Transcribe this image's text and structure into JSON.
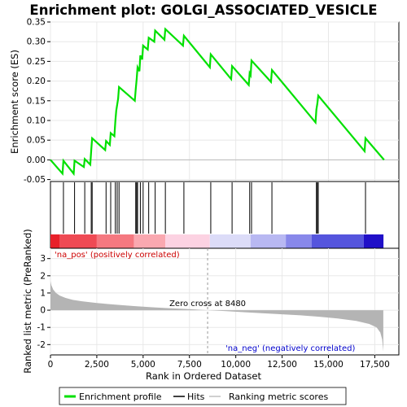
{
  "chart_data": {
    "type": "line",
    "title": "Enrichment plot: GOLGI_ASSOCIATED_VESICLE",
    "xlabel": "Rank in Ordered Dataset",
    "ylabel_top": "Enrichment score (ES)",
    "ylabel_bottom": "Ranked list metric (PreRanked)",
    "xlim": [
      0,
      18800
    ],
    "x_ticks": [
      0,
      2500,
      5000,
      7500,
      10000,
      12500,
      15000,
      17500
    ],
    "x_tick_labels": [
      "0",
      "2,500",
      "5,000",
      "7,500",
      "10,000",
      "12,500",
      "15,000",
      "17,500"
    ],
    "es_ylim": [
      -0.055,
      0.35
    ],
    "es_ticks": [
      -0.05,
      0.0,
      0.05,
      0.1,
      0.15,
      0.2,
      0.25,
      0.3,
      0.35
    ],
    "es_tick_labels": [
      "-0.05",
      "0.00",
      "0.05",
      "0.10",
      "0.15",
      "0.20",
      "0.25",
      "0.30",
      "0.35"
    ],
    "metric_ylim": [
      -2.6,
      3.6
    ],
    "metric_ticks": [
      -2,
      -1,
      0,
      1,
      2,
      3
    ],
    "metric_tick_labels": [
      "-2",
      "-1",
      "0",
      "1",
      "2",
      "3"
    ],
    "hits": [
      0,
      700,
      1300,
      1850,
      2200,
      2250,
      3000,
      3250,
      3500,
      3600,
      3700,
      4600,
      4650,
      4700,
      4850,
      5000,
      5300,
      5650,
      6200,
      7200,
      8650,
      9800,
      10750,
      10850,
      11950,
      14350,
      14400,
      14450,
      17000
    ],
    "es_curve": [
      [
        0,
        0.0
      ],
      [
        650,
        -0.035
      ],
      [
        700,
        -0.002
      ],
      [
        1250,
        -0.035
      ],
      [
        1300,
        -0.002
      ],
      [
        1800,
        -0.018
      ],
      [
        1850,
        0.002
      ],
      [
        2150,
        -0.012
      ],
      [
        2200,
        0.025
      ],
      [
        2250,
        0.055
      ],
      [
        2950,
        0.025
      ],
      [
        3000,
        0.048
      ],
      [
        3200,
        0.038
      ],
      [
        3250,
        0.068
      ],
      [
        3450,
        0.06
      ],
      [
        3500,
        0.098
      ],
      [
        3550,
        0.125
      ],
      [
        3650,
        0.155
      ],
      [
        3700,
        0.185
      ],
      [
        4550,
        0.15
      ],
      [
        4600,
        0.178
      ],
      [
        4650,
        0.205
      ],
      [
        4700,
        0.235
      ],
      [
        4800,
        0.225
      ],
      [
        4850,
        0.265
      ],
      [
        4950,
        0.255
      ],
      [
        5000,
        0.29
      ],
      [
        5250,
        0.28
      ],
      [
        5300,
        0.31
      ],
      [
        5600,
        0.3
      ],
      [
        5650,
        0.328
      ],
      [
        6150,
        0.305
      ],
      [
        6200,
        0.332
      ],
      [
        7150,
        0.29
      ],
      [
        7200,
        0.315
      ],
      [
        8600,
        0.235
      ],
      [
        8650,
        0.268
      ],
      [
        9750,
        0.205
      ],
      [
        9800,
        0.238
      ],
      [
        10700,
        0.19
      ],
      [
        10750,
        0.22
      ],
      [
        10800,
        0.215
      ],
      [
        10850,
        0.252
      ],
      [
        11900,
        0.198
      ],
      [
        11950,
        0.228
      ],
      [
        14300,
        0.095
      ],
      [
        14350,
        0.128
      ],
      [
        14400,
        0.142
      ],
      [
        14450,
        0.163
      ],
      [
        16950,
        0.022
      ],
      [
        17000,
        0.055
      ],
      [
        18000,
        0.0
      ]
    ],
    "metric_profile": [
      [
        0,
        1.7
      ],
      [
        50,
        1.45
      ],
      [
        150,
        1.2
      ],
      [
        300,
        1.0
      ],
      [
        500,
        0.85
      ],
      [
        800,
        0.72
      ],
      [
        1200,
        0.6
      ],
      [
        1700,
        0.52
      ],
      [
        2500,
        0.42
      ],
      [
        3500,
        0.32
      ],
      [
        4500,
        0.24
      ],
      [
        5500,
        0.17
      ],
      [
        6500,
        0.11
      ],
      [
        7500,
        0.06
      ],
      [
        8480,
        0.0
      ],
      [
        9500,
        -0.06
      ],
      [
        10500,
        -0.12
      ],
      [
        11500,
        -0.18
      ],
      [
        12500,
        -0.24
      ],
      [
        13500,
        -0.3
      ],
      [
        14500,
        -0.38
      ],
      [
        15500,
        -0.48
      ],
      [
        16500,
        -0.62
      ],
      [
        17200,
        -0.8
      ],
      [
        17600,
        -1.0
      ],
      [
        17800,
        -1.3
      ],
      [
        17900,
        -1.7
      ],
      [
        17960,
        -2.4
      ]
    ],
    "zero_cross_rank": 8480,
    "zero_cross_label": "Zero cross at 8480",
    "pos_label": "'na_pos' (positively correlated)",
    "neg_label": "'na_neg' (negatively correlated)",
    "colorbar_segments": [
      {
        "start": 0,
        "end": 500,
        "color": "#e8202a"
      },
      {
        "start": 500,
        "end": 2500,
        "color": "#ef4a54"
      },
      {
        "start": 2500,
        "end": 4500,
        "color": "#f57880"
      },
      {
        "start": 4500,
        "end": 6200,
        "color": "#faa8b0"
      },
      {
        "start": 6200,
        "end": 8600,
        "color": "#fcd2e2"
      },
      {
        "start": 8600,
        "end": 10800,
        "color": "#dcdcf8"
      },
      {
        "start": 10800,
        "end": 12700,
        "color": "#b8b8f2"
      },
      {
        "start": 12700,
        "end": 14100,
        "color": "#8888ea"
      },
      {
        "start": 14100,
        "end": 16900,
        "color": "#5555dd"
      },
      {
        "start": 16900,
        "end": 17970,
        "color": "#2010c8"
      }
    ],
    "legend": [
      {
        "label": "Enrichment profile",
        "color": "#00e000"
      },
      {
        "label": "Hits",
        "color": "#000000"
      },
      {
        "label": "Ranking metric scores",
        "color": "#c0c0c0"
      }
    ],
    "colors": {
      "es_line": "#00e000",
      "hit": "#000000",
      "metric_fill": "#b4b4b4",
      "pos_text": "#cc0000",
      "neg_text": "#0000cc",
      "grid": "#e8e8e8"
    }
  }
}
